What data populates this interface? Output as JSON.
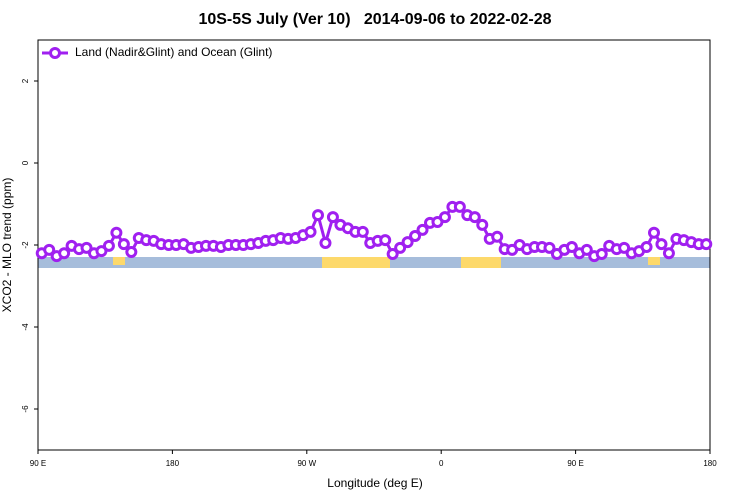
{
  "chart_data": {
    "type": "line",
    "title": "10S-5S July (Ver 10)   2014-09-06 to 2022-02-28",
    "x_label": "Longitude (deg E)",
    "y_label": "XCO2 - MLO trend (ppm)",
    "xlim": [
      90,
      540
    ],
    "xticks": [
      {
        "value": 90,
        "label": "90 E"
      },
      180,
      {
        "value": 270,
        "label": "90 W"
      },
      {
        "value": 360,
        "label": "0"
      },
      {
        "value": 450,
        "label": "90 E"
      },
      {
        "value": 540,
        "label": "180"
      }
    ],
    "ylim": [
      -7,
      3
    ],
    "yticks": [
      2,
      0,
      -2,
      -4,
      -6
    ],
    "legend": "top-left",
    "x": [
      92.5,
      97.5,
      102.5,
      107.5,
      112.5,
      117.5,
      122.5,
      127.5,
      132.5,
      137.5,
      142.5,
      147.5,
      152.5,
      157.5,
      162.5,
      167.5,
      172.5,
      177.5,
      182.5,
      187.5,
      192.5,
      197.5,
      202.5,
      207.5,
      212.5,
      217.5,
      222.5,
      227.5,
      232.5,
      237.5,
      242.5,
      247.5,
      252.5,
      257.5,
      262.5,
      267.5,
      272.5,
      277.5,
      282.5,
      287.5,
      292.5,
      297.5,
      302.5,
      307.5,
      312.5,
      317.5,
      322.5,
      327.5,
      332.5,
      337.5,
      342.5,
      347.5,
      352.5,
      357.5,
      362.5,
      367.5,
      372.5,
      377.5,
      382.5,
      387.5,
      392.5,
      397.5,
      402.5,
      407.5,
      412.5,
      417.5,
      422.5,
      427.5,
      432.5,
      437.5,
      442.5,
      447.5,
      452.5,
      457.5,
      462.5,
      467.5,
      472.5,
      477.5,
      482.5,
      487.5,
      492.5,
      497.5,
      502.5,
      507.5,
      512.5,
      517.5,
      522.5,
      527.5,
      532.5,
      537.5
    ],
    "series": [
      {
        "name": "Land (Nadir&Glint) and Ocean (Glint)",
        "color": "#a020f0",
        "values": [
          -2.2,
          -2.12,
          -2.27,
          -2.2,
          -2.02,
          -2.1,
          -2.07,
          -2.2,
          -2.15,
          -2.02,
          -1.7,
          -1.98,
          -2.17,
          -1.83,
          -1.88,
          -1.9,
          -1.98,
          -2.0,
          -2.0,
          -1.98,
          -2.07,
          -2.05,
          -2.02,
          -2.02,
          -2.05,
          -2.0,
          -2.0,
          -2.0,
          -1.98,
          -1.95,
          -1.9,
          -1.88,
          -1.83,
          -1.85,
          -1.83,
          -1.76,
          -1.68,
          -1.27,
          -1.95,
          -1.32,
          -1.51,
          -1.59,
          -1.68,
          -1.68,
          -1.95,
          -1.9,
          -1.88,
          -2.22,
          -2.07,
          -1.93,
          -1.78,
          -1.63,
          -1.46,
          -1.44,
          -1.32,
          -1.07,
          -1.07,
          -1.27,
          -1.32,
          -1.51,
          -1.85,
          -1.8,
          -2.1,
          -2.12,
          -2.0,
          -2.1,
          -2.05,
          -2.05,
          -2.07,
          -2.22,
          -2.12,
          -2.05,
          -2.2,
          -2.12,
          -2.27,
          -2.22,
          -2.02,
          -2.1,
          -2.07,
          -2.2,
          -2.15,
          -2.05,
          -1.7,
          -1.98,
          -2.2,
          -1.85,
          -1.88,
          -1.93,
          -1.98,
          -1.98
        ]
      }
    ]
  }
}
